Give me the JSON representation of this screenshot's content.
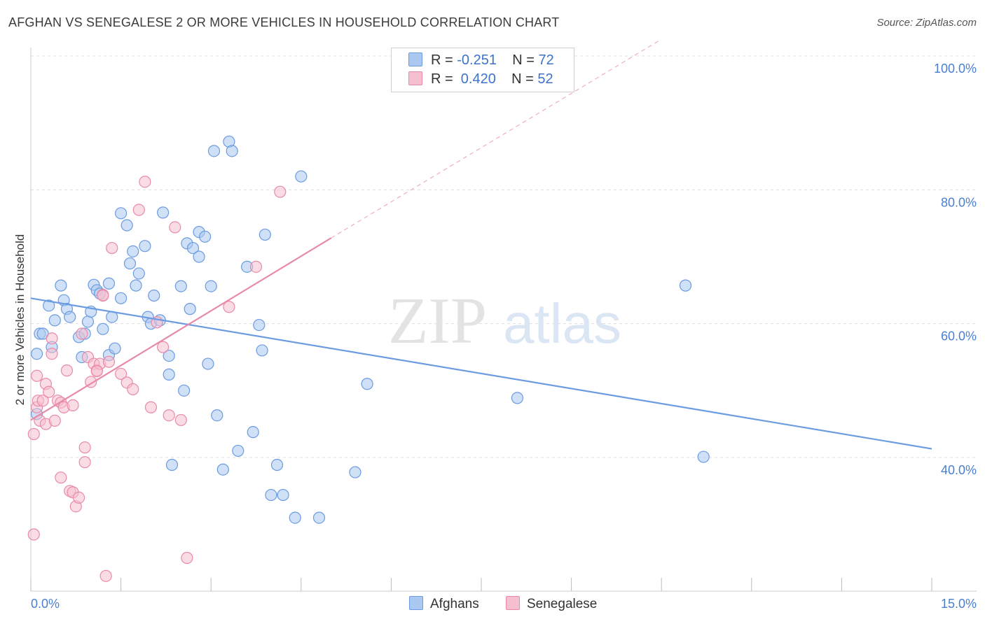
{
  "title": "AFGHAN VS SENEGALESE 2 OR MORE VEHICLES IN HOUSEHOLD CORRELATION CHART",
  "source": "Source: ZipAtlas.com",
  "watermark": {
    "zip": "ZIP",
    "atlas": "atlas"
  },
  "legend": {
    "rows": [
      {
        "r_label": "R = ",
        "r_value": "-0.251",
        "n_label": "N = ",
        "n_value": "72",
        "color": "#aac8f0",
        "stroke": "#6b9be0"
      },
      {
        "r_label": "R = ",
        "r_value": " 0.420",
        "n_label": "N = ",
        "n_value": "52",
        "color": "#f6bfd0",
        "stroke": "#e88aa8"
      }
    ]
  },
  "bottom_legend": [
    {
      "label": "Afghans",
      "color": "#aac8f0",
      "stroke": "#6b9be0"
    },
    {
      "label": "Senegalese",
      "color": "#f6bfd0",
      "stroke": "#e88aa8"
    }
  ],
  "chart_data": {
    "type": "scatter",
    "title": "AFGHAN VS SENEGALESE 2 OR MORE VEHICLES IN HOUSEHOLD CORRELATION CHART",
    "xlabel": "",
    "ylabel": "2 or more Vehicles in Household",
    "xlim": [
      0,
      15
    ],
    "ylim": [
      20,
      102
    ],
    "x_tick_labels": [
      "0.0%",
      "15.0%"
    ],
    "y_ticks": [
      40,
      60,
      80,
      100
    ],
    "y_tick_labels": [
      "40.0%",
      "60.0%",
      "80.0%",
      "100.0%"
    ],
    "grid": true,
    "legend_position": "top-center",
    "series": [
      {
        "name": "Afghans",
        "color": "#6b9be0",
        "fill": "#aac8f0",
        "trend": {
          "x": [
            0.0,
            15.0
          ],
          "y": [
            63.8,
            41.3
          ],
          "style": "solid"
        },
        "points": [
          [
            0.1,
            55.5
          ],
          [
            0.1,
            46.5
          ],
          [
            0.15,
            58.5
          ],
          [
            0.2,
            58.5
          ],
          [
            0.3,
            62.7
          ],
          [
            0.35,
            56.5
          ],
          [
            0.4,
            60.5
          ],
          [
            0.5,
            65.7
          ],
          [
            0.55,
            63.5
          ],
          [
            0.6,
            62.2
          ],
          [
            0.65,
            61.0
          ],
          [
            0.8,
            58.0
          ],
          [
            0.85,
            55.0
          ],
          [
            0.9,
            58.5
          ],
          [
            0.95,
            60.3
          ],
          [
            1.0,
            61.8
          ],
          [
            1.05,
            65.8
          ],
          [
            1.1,
            65.0
          ],
          [
            1.15,
            64.5
          ],
          [
            1.2,
            59.2
          ],
          [
            1.3,
            55.3
          ],
          [
            1.3,
            66.0
          ],
          [
            1.35,
            61.0
          ],
          [
            1.4,
            56.3
          ],
          [
            1.5,
            63.8
          ],
          [
            1.5,
            76.5
          ],
          [
            1.6,
            74.7
          ],
          [
            1.65,
            69.0
          ],
          [
            1.7,
            70.8
          ],
          [
            1.75,
            65.7
          ],
          [
            1.8,
            67.5
          ],
          [
            1.9,
            71.6
          ],
          [
            1.95,
            61.0
          ],
          [
            2.0,
            60.0
          ],
          [
            2.05,
            64.2
          ],
          [
            2.15,
            60.5
          ],
          [
            2.2,
            76.6
          ],
          [
            2.3,
            55.2
          ],
          [
            2.3,
            52.4
          ],
          [
            2.35,
            38.9
          ],
          [
            2.5,
            65.6
          ],
          [
            2.55,
            50.0
          ],
          [
            2.6,
            72.0
          ],
          [
            2.65,
            62.2
          ],
          [
            2.7,
            71.3
          ],
          [
            2.8,
            70.0
          ],
          [
            2.8,
            73.7
          ],
          [
            2.9,
            73.0
          ],
          [
            2.95,
            54.0
          ],
          [
            3.0,
            65.6
          ],
          [
            3.05,
            85.8
          ],
          [
            3.1,
            46.3
          ],
          [
            3.2,
            38.2
          ],
          [
            3.3,
            87.2
          ],
          [
            3.35,
            85.8
          ],
          [
            3.45,
            41.0
          ],
          [
            3.6,
            68.5
          ],
          [
            3.7,
            43.8
          ],
          [
            3.8,
            59.8
          ],
          [
            3.85,
            56.0
          ],
          [
            3.9,
            73.3
          ],
          [
            4.0,
            34.4
          ],
          [
            4.1,
            38.9
          ],
          [
            4.4,
            31.0
          ],
          [
            4.5,
            82.0
          ],
          [
            4.8,
            31.0
          ],
          [
            5.4,
            37.8
          ],
          [
            5.6,
            51.0
          ],
          [
            8.1,
            48.9
          ],
          [
            10.9,
            65.7
          ],
          [
            11.2,
            40.1
          ],
          [
            4.2,
            34.4
          ]
        ]
      },
      {
        "name": "Senegalese",
        "color": "#e88aa8",
        "fill": "#f6bfd0",
        "trend": {
          "x": [
            0.0,
            5.0
          ],
          "y": [
            45.6,
            72.8
          ],
          "style": "solid",
          "extension_x": [
            5.0,
            10.5
          ],
          "extension_y": [
            72.8,
            102.5
          ],
          "extension_style": "dashed"
        },
        "points": [
          [
            0.05,
            43.5
          ],
          [
            0.05,
            28.5
          ],
          [
            0.1,
            47.5
          ],
          [
            0.1,
            52.2
          ],
          [
            0.12,
            48.5
          ],
          [
            0.15,
            45.5
          ],
          [
            0.2,
            48.5
          ],
          [
            0.25,
            51.0
          ],
          [
            0.25,
            45.0
          ],
          [
            0.3,
            49.8
          ],
          [
            0.35,
            55.5
          ],
          [
            0.35,
            57.8
          ],
          [
            0.4,
            45.5
          ],
          [
            0.45,
            48.5
          ],
          [
            0.5,
            48.2
          ],
          [
            0.5,
            37.0
          ],
          [
            0.55,
            47.5
          ],
          [
            0.6,
            53.0
          ],
          [
            0.65,
            35.0
          ],
          [
            0.7,
            34.8
          ],
          [
            0.7,
            47.8
          ],
          [
            0.75,
            32.7
          ],
          [
            0.8,
            34.0
          ],
          [
            0.85,
            58.5
          ],
          [
            0.9,
            41.5
          ],
          [
            0.9,
            39.3
          ],
          [
            0.95,
            55.0
          ],
          [
            1.0,
            51.3
          ],
          [
            1.05,
            54.0
          ],
          [
            1.1,
            53.0
          ],
          [
            1.15,
            54.0
          ],
          [
            1.2,
            64.3
          ],
          [
            1.25,
            22.3
          ],
          [
            1.3,
            54.3
          ],
          [
            1.35,
            71.3
          ],
          [
            1.5,
            52.5
          ],
          [
            1.6,
            51.2
          ],
          [
            1.7,
            50.2
          ],
          [
            1.8,
            77.0
          ],
          [
            1.9,
            81.2
          ],
          [
            2.0,
            47.5
          ],
          [
            2.1,
            60.2
          ],
          [
            2.2,
            56.5
          ],
          [
            2.3,
            46.3
          ],
          [
            2.4,
            74.4
          ],
          [
            2.5,
            45.6
          ],
          [
            2.6,
            25.0
          ],
          [
            3.3,
            62.5
          ],
          [
            4.15,
            79.7
          ],
          [
            3.75,
            68.5
          ],
          [
            1.2,
            64.2
          ],
          [
            1.1,
            52.9
          ]
        ]
      }
    ]
  }
}
